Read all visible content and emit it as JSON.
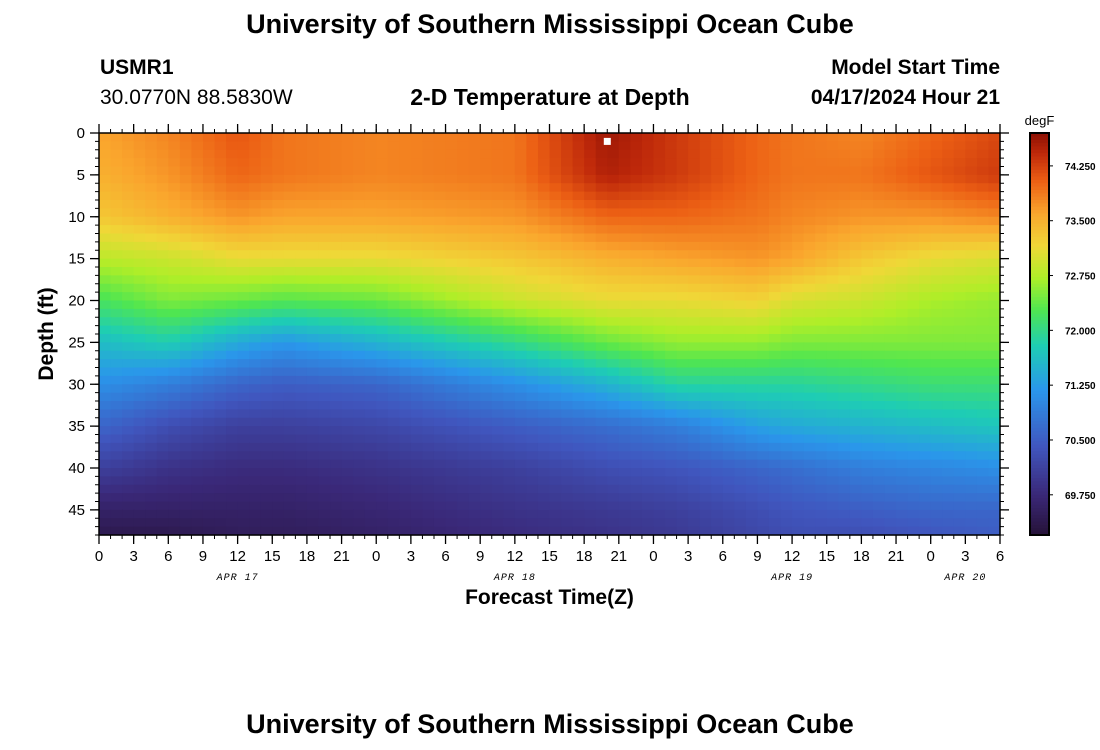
{
  "header": {
    "title": "University of Southern Mississippi Ocean Cube",
    "station": "USMR1",
    "coords": "30.0770N  88.5830W",
    "plot_title": "2-D Temperature at Depth",
    "model_label": "Model Start Time",
    "model_time": "04/17/2024 Hour 21"
  },
  "footer": {
    "title": "University of Southern Mississippi Ocean Cube"
  },
  "chart_data": {
    "type": "heatmap",
    "title": "2-D Temperature at Depth",
    "xlabel": "Forecast Time(Z)",
    "ylabel": "Depth (ft)",
    "x_ticks": [
      "0",
      "3",
      "6",
      "9",
      "12",
      "15",
      "18",
      "21",
      "0",
      "3",
      "6",
      "9",
      "12",
      "15",
      "18",
      "21",
      "0",
      "3",
      "6",
      "9",
      "12",
      "15",
      "18",
      "21",
      "0",
      "3",
      "6"
    ],
    "date_labels": [
      {
        "label": "APR 17",
        "hour": 12
      },
      {
        "label": "APR 18",
        "hour": 36
      },
      {
        "label": "APR 19",
        "hour": 60
      },
      {
        "label": "APR 20",
        "hour": 75
      }
    ],
    "xlim": [
      0,
      78
    ],
    "ylim": [
      0,
      48
    ],
    "y_ticks": [
      0,
      5,
      10,
      15,
      20,
      25,
      30,
      35,
      40,
      45
    ],
    "colorbar": {
      "unit": "degF",
      "range": [
        69.2,
        74.7
      ],
      "tick_values": [
        69.75,
        70.5,
        71.25,
        72.0,
        72.75,
        73.5,
        74.25
      ],
      "tick_labels": [
        "69.750",
        "70.500",
        "71.250",
        "72.000",
        "72.750",
        "73.500",
        "74.250"
      ]
    },
    "marker": {
      "hour": 44,
      "depth": 1
    },
    "field": {
      "hours": [
        0,
        6,
        12,
        16,
        24,
        36,
        44,
        50,
        57,
        60,
        66,
        72,
        78
      ],
      "depths": [
        0,
        5,
        10,
        15,
        20,
        25,
        30,
        35,
        40,
        45,
        48
      ],
      "temps_degF": [
        [
          73.6,
          73.8,
          74.1,
          73.9,
          73.8,
          73.9,
          74.6,
          74.3,
          74.0,
          73.9,
          73.8,
          74.0,
          74.2
        ],
        [
          73.5,
          73.7,
          74.0,
          73.9,
          73.8,
          73.9,
          74.5,
          74.3,
          74.0,
          73.9,
          73.9,
          74.1,
          74.3
        ],
        [
          73.3,
          73.5,
          73.7,
          73.6,
          73.6,
          73.7,
          74.0,
          74.0,
          73.9,
          73.8,
          73.7,
          73.7,
          73.8
        ],
        [
          72.8,
          72.9,
          73.1,
          73.1,
          73.1,
          73.3,
          73.5,
          73.6,
          73.7,
          73.6,
          73.3,
          73.1,
          73.0
        ],
        [
          72.2,
          72.5,
          72.4,
          72.3,
          72.4,
          72.9,
          73.1,
          73.1,
          73.2,
          73.0,
          72.9,
          72.7,
          72.6
        ],
        [
          71.6,
          71.8,
          71.4,
          71.2,
          71.5,
          72.0,
          72.4,
          72.6,
          72.6,
          72.5,
          72.5,
          72.5,
          72.5
        ],
        [
          71.1,
          70.9,
          70.6,
          70.5,
          70.6,
          71.1,
          71.5,
          71.9,
          71.9,
          71.9,
          72.0,
          72.1,
          72.1
        ],
        [
          70.6,
          70.3,
          70.1,
          70.1,
          70.2,
          70.5,
          70.7,
          70.9,
          71.3,
          71.4,
          71.5,
          71.6,
          71.7
        ],
        [
          70.1,
          69.9,
          69.8,
          69.8,
          69.9,
          70.1,
          70.3,
          70.4,
          70.6,
          70.7,
          70.9,
          71.0,
          71.1
        ],
        [
          69.6,
          69.6,
          69.6,
          69.6,
          69.7,
          69.9,
          70.0,
          70.1,
          70.3,
          70.4,
          70.5,
          70.6,
          70.6
        ],
        [
          69.4,
          69.4,
          69.5,
          69.5,
          69.6,
          69.8,
          69.9,
          70.0,
          70.2,
          70.3,
          70.3,
          70.4,
          70.5
        ]
      ]
    }
  }
}
